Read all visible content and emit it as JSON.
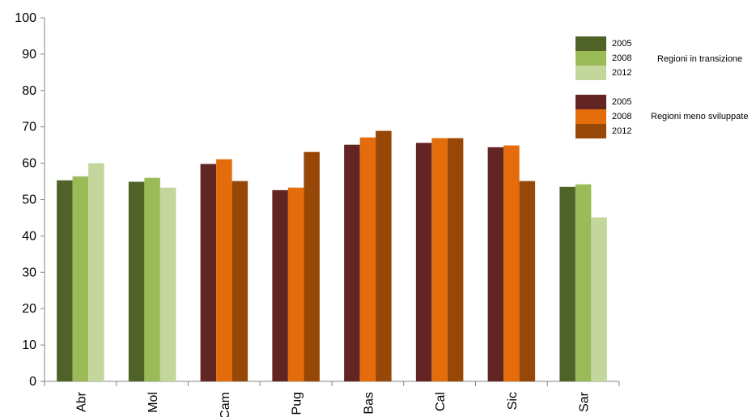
{
  "chart_data": {
    "type": "bar",
    "categories": [
      "Abr",
      "Mol",
      "Cam",
      "Pug",
      "Bas",
      "Cal",
      "Sic",
      "Sar"
    ],
    "ylim": [
      0,
      100
    ],
    "yticks": [
      0,
      10,
      20,
      30,
      40,
      50,
      60,
      70,
      80,
      90,
      100
    ],
    "grid": false,
    "legend_position": "top-right",
    "groups": [
      {
        "name": "Regioni in transizione",
        "categories": [
          "Abr",
          "Mol",
          "Sar"
        ],
        "series": [
          {
            "name": "2005",
            "color": "#4f6228",
            "values": [
              55.3,
              54.9,
              53.5
            ]
          },
          {
            "name": "2008",
            "color": "#9bbb59",
            "values": [
              56.4,
              56.0,
              54.2
            ]
          },
          {
            "name": "2012",
            "color": "#c3d69b",
            "values": [
              60.0,
              53.3,
              45.1
            ]
          }
        ]
      },
      {
        "name": "Regioni meno sviluppate",
        "categories": [
          "Cam",
          "Pug",
          "Bas",
          "Cal",
          "Sic"
        ],
        "series": [
          {
            "name": "2005",
            "color": "#632523",
            "values": [
              59.8,
              52.6,
              65.1,
              65.6,
              64.4
            ]
          },
          {
            "name": "2008",
            "color": "#e46c0a",
            "values": [
              61.1,
              53.3,
              67.1,
              66.9,
              64.9
            ]
          },
          {
            "name": "2012",
            "color": "#974706",
            "values": [
              55.1,
              63.1,
              68.9,
              66.9,
              55.1
            ]
          }
        ]
      }
    ]
  }
}
